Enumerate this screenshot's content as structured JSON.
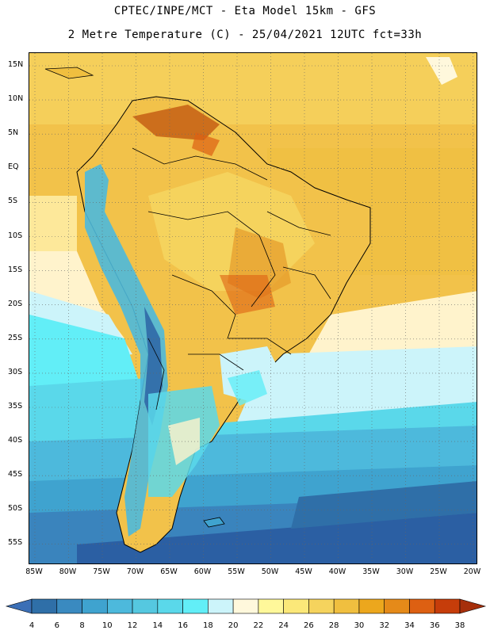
{
  "header": {
    "line1": "CPTEC/INPE/MCT -  Eta Model 15km - GFS",
    "line2": "2 Metre Temperature (C) - 25/04/2021 12UTC fct=33h"
  },
  "axes": {
    "lat_labels": [
      "15N",
      "10N",
      "5N",
      "EQ",
      "5S",
      "10S",
      "15S",
      "20S",
      "25S",
      "30S",
      "35S",
      "40S",
      "45S",
      "50S",
      "55S"
    ],
    "lon_labels": [
      "85W",
      "80W",
      "75W",
      "70W",
      "65W",
      "60W",
      "55W",
      "50W",
      "45W",
      "40W",
      "35W",
      "30W",
      "25W",
      "20W"
    ]
  },
  "colorbar": {
    "labels": [
      "4",
      "6",
      "8",
      "10",
      "12",
      "14",
      "16",
      "18",
      "20",
      "22",
      "24",
      "26",
      "28",
      "30",
      "32",
      "34",
      "36",
      "38"
    ],
    "colors": [
      "#3b6fb6",
      "#2f6fa8",
      "#3a8ac0",
      "#3fa3cf",
      "#4db9dc",
      "#55c8e0",
      "#5ad8ea",
      "#62eef7",
      "#ccf4fa",
      "#fff8dc",
      "#fff89a",
      "#fbe879",
      "#f5d35d",
      "#f0bf3f",
      "#eca71d",
      "#e58a19",
      "#dd6012",
      "#c63d0a",
      "#a62f0b"
    ]
  },
  "map_colors": {
    "deep_blue": "#2b5fa3",
    "mid_blue": "#3a84bd",
    "cyan": "#4fc2db",
    "light_cyan": "#9be3ee",
    "pale": "#ccf4fa",
    "cream": "#fff3cc",
    "yellow": "#fbe07a",
    "gold": "#f2c24a",
    "orange": "#e69a2a",
    "dark_orange": "#c65f14"
  }
}
